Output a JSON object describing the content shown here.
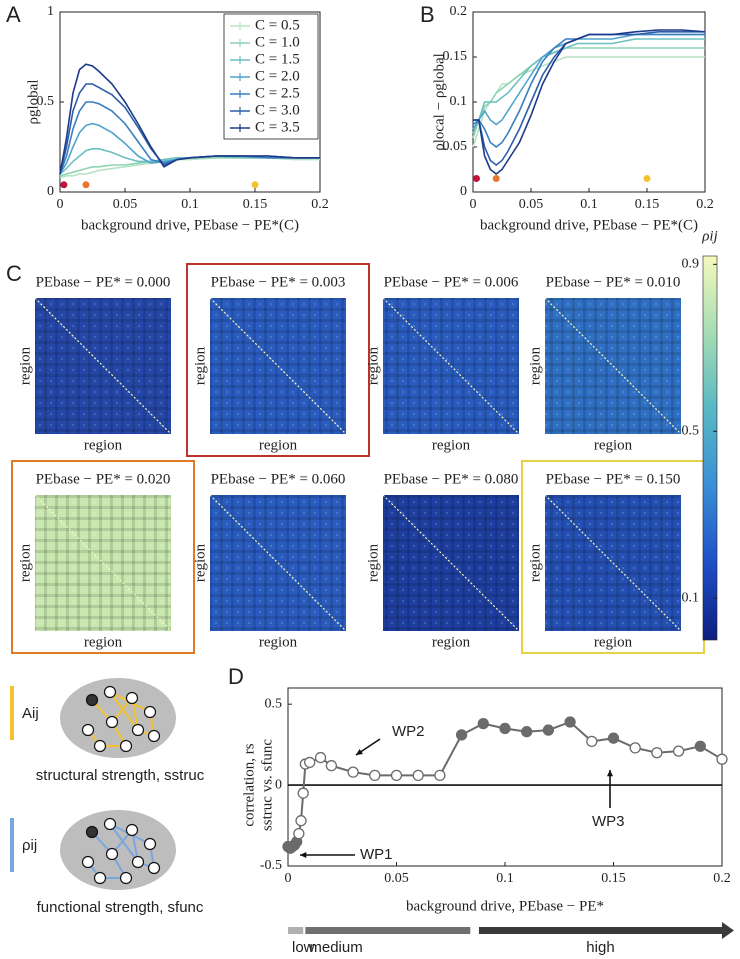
{
  "chart_data": [
    {
      "type": "line",
      "label": "A",
      "x": [
        0,
        0.005,
        0.01,
        0.015,
        0.02,
        0.025,
        0.03,
        0.04,
        0.05,
        0.06,
        0.07,
        0.08,
        0.09,
        0.1,
        0.12,
        0.14,
        0.16,
        0.18,
        0.2
      ],
      "series": [
        {
          "name": "C = 0.5",
          "color": "#b5e3c3",
          "values": [
            0.08,
            0.09,
            0.09,
            0.1,
            0.1,
            0.11,
            0.12,
            0.13,
            0.14,
            0.15,
            0.16,
            0.17,
            0.18,
            0.18,
            0.19,
            0.19,
            0.19,
            0.18,
            0.18
          ]
        },
        {
          "name": "C = 1.0",
          "color": "#8ed4b2",
          "values": [
            0.09,
            0.1,
            0.11,
            0.12,
            0.13,
            0.14,
            0.14,
            0.15,
            0.15,
            0.16,
            0.17,
            0.18,
            0.19,
            0.19,
            0.19,
            0.19,
            0.19,
            0.19,
            0.19
          ]
        },
        {
          "name": "C = 1.5",
          "color": "#6cc0c0",
          "values": [
            0.1,
            0.13,
            0.17,
            0.2,
            0.23,
            0.24,
            0.24,
            0.22,
            0.19,
            0.17,
            0.17,
            0.18,
            0.19,
            0.19,
            0.2,
            0.19,
            0.19,
            0.19,
            0.19
          ]
        },
        {
          "name": "C = 2.0",
          "color": "#4ea3cc",
          "values": [
            0.1,
            0.16,
            0.25,
            0.33,
            0.37,
            0.38,
            0.37,
            0.33,
            0.27,
            0.2,
            0.16,
            0.17,
            0.18,
            0.19,
            0.2,
            0.2,
            0.19,
            0.19,
            0.19
          ]
        },
        {
          "name": "C = 2.5",
          "color": "#3a7fc0",
          "values": [
            0.1,
            0.2,
            0.35,
            0.45,
            0.5,
            0.5,
            0.49,
            0.45,
            0.38,
            0.28,
            0.18,
            0.16,
            0.18,
            0.19,
            0.2,
            0.2,
            0.19,
            0.19,
            0.19
          ]
        },
        {
          "name": "C = 3.0",
          "color": "#2c5ea9",
          "values": [
            0.1,
            0.25,
            0.45,
            0.55,
            0.6,
            0.6,
            0.58,
            0.54,
            0.47,
            0.36,
            0.24,
            0.15,
            0.18,
            0.19,
            0.2,
            0.2,
            0.2,
            0.19,
            0.19
          ]
        },
        {
          "name": "C = 3.5",
          "color": "#1d3a8a",
          "values": [
            0.1,
            0.3,
            0.55,
            0.68,
            0.71,
            0.7,
            0.67,
            0.6,
            0.5,
            0.38,
            0.25,
            0.14,
            0.18,
            0.19,
            0.2,
            0.2,
            0.2,
            0.19,
            0.19
          ]
        }
      ],
      "markers": {
        "x": [
          0.003,
          0.02,
          0.15
        ],
        "y": [
          0.04,
          0.04,
          0.04
        ],
        "colors": [
          "#c0143c",
          "#e8762c",
          "#f2c230"
        ]
      },
      "xlim": [
        0,
        0.2
      ],
      "xticks": [
        0,
        0.05,
        0.1,
        0.15,
        0.2
      ],
      "ylim": [
        0,
        1
      ],
      "yticks": [
        0,
        0.5,
        1
      ],
      "xlabel": "background drive, PEbase − PE*(C)",
      "ylabel": "ρglobal",
      "legend": "upper right"
    },
    {
      "type": "line",
      "label": "B",
      "x": [
        0,
        0.005,
        0.01,
        0.015,
        0.02,
        0.025,
        0.03,
        0.04,
        0.05,
        0.06,
        0.07,
        0.08,
        0.09,
        0.1,
        0.12,
        0.14,
        0.16,
        0.18,
        0.2
      ],
      "series": [
        {
          "name": "C = 0.5",
          "color": "#b5e3c3",
          "values": [
            0.05,
            0.07,
            0.09,
            0.1,
            0.11,
            0.12,
            0.12,
            0.13,
            0.135,
            0.14,
            0.145,
            0.15,
            0.15,
            0.15,
            0.15,
            0.15,
            0.15,
            0.15,
            0.15
          ]
        },
        {
          "name": "C = 1.0",
          "color": "#8ed4b2",
          "values": [
            0.06,
            0.08,
            0.095,
            0.1,
            0.11,
            0.115,
            0.12,
            0.13,
            0.14,
            0.15,
            0.155,
            0.16,
            0.16,
            0.16,
            0.16,
            0.16,
            0.16,
            0.16,
            0.16
          ]
        },
        {
          "name": "C = 1.5",
          "color": "#6cc0c0",
          "values": [
            0.065,
            0.08,
            0.1,
            0.1,
            0.1,
            0.105,
            0.11,
            0.125,
            0.14,
            0.15,
            0.155,
            0.16,
            0.165,
            0.165,
            0.165,
            0.17,
            0.17,
            0.17,
            0.17
          ]
        },
        {
          "name": "C = 2.0",
          "color": "#4ea3cc",
          "values": [
            0.07,
            0.08,
            0.09,
            0.08,
            0.075,
            0.08,
            0.09,
            0.11,
            0.13,
            0.15,
            0.16,
            0.165,
            0.17,
            0.17,
            0.17,
            0.175,
            0.175,
            0.175,
            0.175
          ]
        },
        {
          "name": "C = 2.5",
          "color": "#3a7fc0",
          "values": [
            0.075,
            0.08,
            0.07,
            0.055,
            0.05,
            0.055,
            0.065,
            0.09,
            0.12,
            0.145,
            0.16,
            0.17,
            0.17,
            0.175,
            0.175,
            0.175,
            0.175,
            0.175,
            0.175
          ]
        },
        {
          "name": "C = 3.0",
          "color": "#2c5ea9",
          "values": [
            0.08,
            0.08,
            0.05,
            0.035,
            0.03,
            0.035,
            0.045,
            0.07,
            0.1,
            0.13,
            0.15,
            0.165,
            0.17,
            0.175,
            0.175,
            0.175,
            0.178,
            0.178,
            0.178
          ]
        },
        {
          "name": "C = 3.5",
          "color": "#1d3a8a",
          "values": [
            0.08,
            0.08,
            0.04,
            0.025,
            0.02,
            0.025,
            0.035,
            0.055,
            0.085,
            0.12,
            0.145,
            0.165,
            0.17,
            0.175,
            0.175,
            0.178,
            0.18,
            0.18,
            0.178
          ]
        }
      ],
      "markers": {
        "x": [
          0.003,
          0.02,
          0.15
        ],
        "y": [
          0.015,
          0.015,
          0.015
        ],
        "colors": [
          "#c0143c",
          "#e8762c",
          "#f2c230"
        ]
      },
      "xlim": [
        0,
        0.2
      ],
      "xticks": [
        0,
        0.05,
        0.1,
        0.15,
        0.2
      ],
      "ylim": [
        0,
        0.2
      ],
      "yticks": [
        0,
        0.05,
        0.1,
        0.15,
        0.2
      ],
      "xlabel": "background drive, PEbase − PE*(C)",
      "ylabel": "ρlocal − ρglobal"
    },
    {
      "type": "heatmap",
      "label": "C",
      "xlabel": "region",
      "ylabel": "region",
      "matrices": [
        {
          "title": "PEbase − PE* = 0.000",
          "color": "#2548a8"
        },
        {
          "title": "PEbase − PE* = 0.003",
          "color": "#2a5cbf",
          "frame_color": "#c0302c"
        },
        {
          "title": "PEbase − PE* = 0.006",
          "color": "#2a5cbf"
        },
        {
          "title": "PEbase − PE* = 0.010",
          "color": "#3070c4"
        },
        {
          "title": "PEbase − PE* = 0.020",
          "color": "#c8e8b0",
          "frame_color": "#e07a24"
        },
        {
          "title": "PEbase − PE* = 0.060",
          "color": "#2a5cbf"
        },
        {
          "title": "PEbase − PE* = 0.080",
          "color": "#1f3fa0"
        },
        {
          "title": "PEbase − PE* = 0.150",
          "color": "#2450b4",
          "frame_color": "#e8d040"
        }
      ],
      "colorbar": {
        "label": "ρij",
        "lim": [
          0,
          0.92
        ],
        "ticks": [
          0.1,
          0.5,
          0.9
        ],
        "colors": [
          "#0d1f80",
          "#1f4fc7",
          "#3a8ed6",
          "#58b8c4",
          "#a6dcb4",
          "#f5f9bd"
        ]
      }
    },
    {
      "type": "scatter",
      "label": "D",
      "x": [
        0,
        0.001,
        0.002,
        0.003,
        0.004,
        0.005,
        0.006,
        0.007,
        0.008,
        0.01,
        0.015,
        0.02,
        0.03,
        0.04,
        0.05,
        0.06,
        0.07,
        0.08,
        0.09,
        0.1,
        0.11,
        0.12,
        0.13,
        0.14,
        0.15,
        0.16,
        0.17,
        0.18,
        0.19,
        0.2
      ],
      "values": [
        -0.38,
        -0.39,
        -0.38,
        -0.37,
        -0.35,
        -0.3,
        -0.22,
        -0.05,
        0.13,
        0.14,
        0.17,
        0.12,
        0.08,
        0.06,
        0.06,
        0.06,
        0.06,
        0.31,
        0.38,
        0.35,
        0.33,
        0.34,
        0.39,
        0.27,
        0.29,
        0.23,
        0.2,
        0.21,
        0.24,
        0.16
      ],
      "filled": [
        true,
        true,
        true,
        true,
        true,
        false,
        false,
        false,
        false,
        false,
        false,
        false,
        false,
        false,
        false,
        false,
        false,
        true,
        true,
        true,
        true,
        true,
        true,
        false,
        true,
        false,
        false,
        false,
        true,
        false
      ],
      "color": "#6b6b6b",
      "annotations": [
        {
          "text": "WP1",
          "color": "#b01830"
        },
        {
          "text": "WP2",
          "color": "#e07a24"
        },
        {
          "text": "WP3",
          "color": "#e8c020"
        }
      ],
      "phases": [
        {
          "label": "low",
          "color": "#b0b0b0",
          "range": [
            0,
            0.007
          ]
        },
        {
          "label": "medium",
          "color": "#707070",
          "range": [
            0.008,
            0.084
          ]
        },
        {
          "label": "high",
          "color": "#3a3a3a",
          "range": [
            0.088,
            0.2
          ]
        }
      ],
      "xlim": [
        0,
        0.2
      ],
      "xticks": [
        0,
        0.05,
        0.1,
        0.15,
        0.2
      ],
      "ylim": [
        -0.5,
        0.6
      ],
      "yticks": [
        -0.5,
        0,
        0.5
      ],
      "xlabel": "background drive, PEbase − PE*",
      "ylabel": [
        "correlation, rs",
        "sstruc vs. sfunc"
      ]
    }
  ],
  "illustration": {
    "rows": [
      {
        "symbol": "Aij",
        "caption": "structural strength, sstruc",
        "color": "#f2c230"
      },
      {
        "symbol": "ρij",
        "caption": "functional strength, sfunc",
        "color": "#7aa6e0"
      }
    ]
  }
}
